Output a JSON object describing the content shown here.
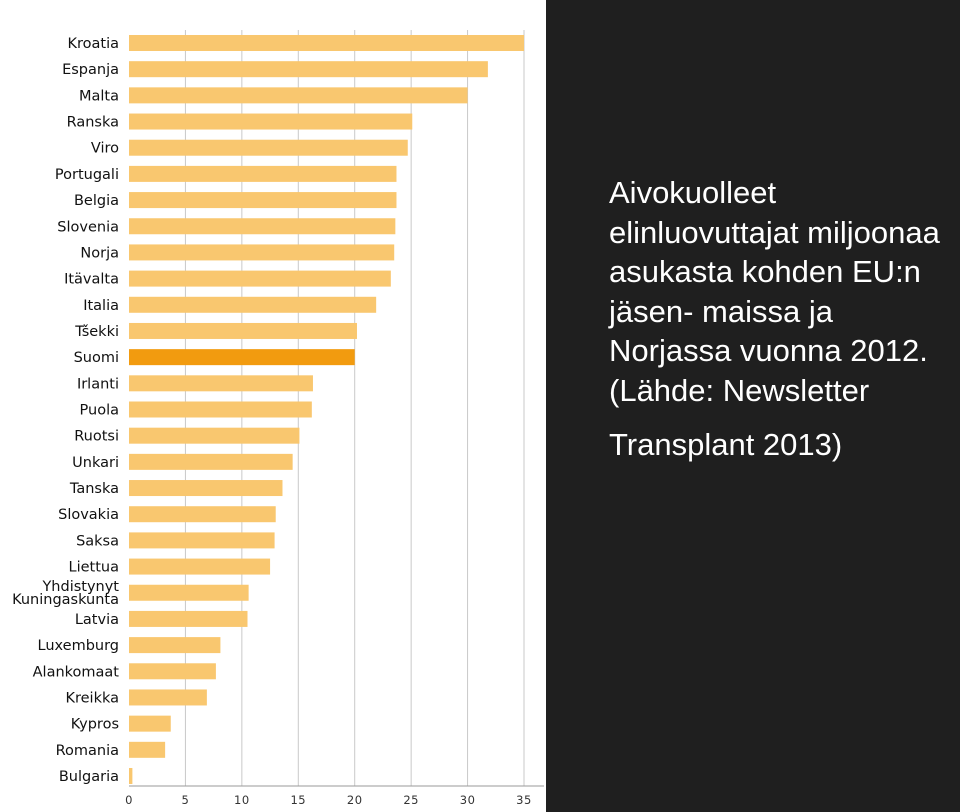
{
  "caption": {
    "lines": [
      "Aivokuolleet",
      "elinluovuttajat miljoonaa",
      "asukasta kohden EU:n",
      "jäsen- maissa ja",
      "Norjassa vuonna 2012.",
      "(Lähde: Newsletter",
      "Transplant 2013)"
    ]
  },
  "chart_data": {
    "type": "bar",
    "orientation": "horizontal",
    "title": "",
    "xlabel": "",
    "ylabel": "",
    "xlim": [
      0,
      35
    ],
    "xticks": [
      0,
      5,
      10,
      15,
      20,
      25,
      30,
      35
    ],
    "grid": true,
    "colors": {
      "bar": "#f9c76f",
      "highlight": "#f29b0f",
      "grid": "#c9c9c9"
    },
    "highlight": "Suomi",
    "categories": [
      "Kroatia",
      "Espanja",
      "Malta",
      "Ranska",
      "Viro",
      "Portugali",
      "Belgia",
      "Slovenia",
      "Norja",
      "Itävalta",
      "Italia",
      "Tšekki",
      "Suomi",
      "Irlanti",
      "Puola",
      "Ruotsi",
      "Unkari",
      "Tanska",
      "Slovakia",
      "Saksa",
      "Liettua",
      "Yhdistynyt Kuningaskunta",
      "Latvia",
      "Luxemburg",
      "Alankomaat",
      "Kreikka",
      "Kypros",
      "Romania",
      "Bulgaria"
    ],
    "values": [
      35.0,
      31.8,
      30.0,
      25.1,
      24.7,
      23.7,
      23.7,
      23.6,
      23.5,
      23.2,
      21.9,
      20.2,
      20.0,
      16.3,
      16.2,
      15.1,
      14.5,
      13.6,
      13.0,
      12.9,
      12.5,
      10.6,
      10.5,
      8.1,
      7.7,
      6.9,
      3.7,
      3.2,
      0.3
    ]
  }
}
